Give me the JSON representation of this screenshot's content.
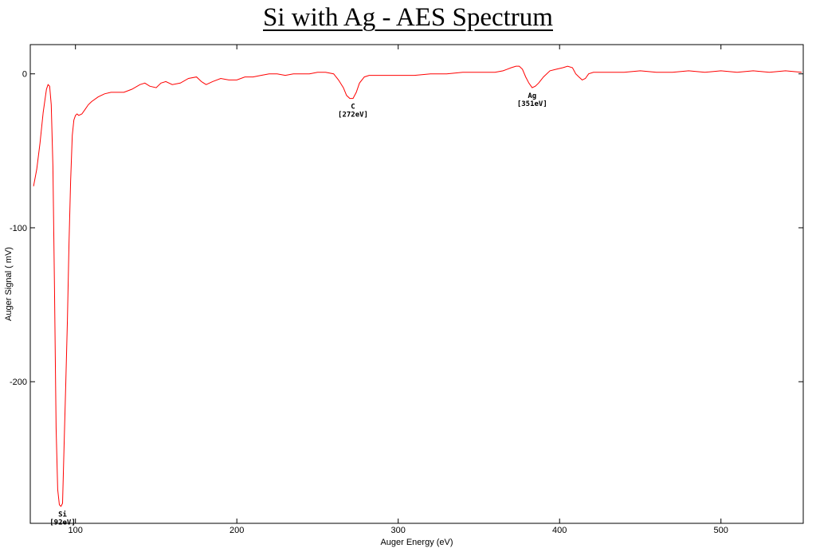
{
  "chart_data": {
    "type": "line",
    "title": "Si with Ag - AES Spectrum",
    "xlabel": "Auger Energy (eV)",
    "ylabel": "Auger Signal ( mV)",
    "xlim": [
      72,
      551
    ],
    "ylim": [
      -292,
      19
    ],
    "xticks": [
      100,
      200,
      300,
      400,
      500
    ],
    "yticks": [
      0,
      -100,
      -200
    ],
    "grid": false,
    "line_color": "#ff0000",
    "series": [
      {
        "x": [
          74,
          76,
          78,
          80,
          82,
          83,
          84,
          85,
          86,
          87,
          88,
          89,
          90,
          91,
          92,
          93,
          94,
          95,
          96,
          97,
          98,
          99,
          100,
          101,
          102,
          104,
          106,
          108,
          110,
          114,
          118,
          122,
          126,
          130,
          135,
          140,
          143,
          146,
          150,
          153,
          156,
          160,
          165,
          170,
          175,
          178,
          181,
          185,
          190,
          195,
          200,
          205,
          210,
          215,
          220,
          225,
          230,
          235,
          240,
          245,
          250,
          255,
          260,
          263,
          266,
          268,
          270,
          272,
          274,
          276,
          279,
          282,
          286,
          290,
          300,
          310,
          320,
          330,
          340,
          350,
          360,
          365,
          370,
          373,
          375,
          377,
          379,
          381,
          383,
          385,
          387,
          390,
          394,
          398,
          402,
          405,
          408,
          410,
          412,
          414,
          416,
          418,
          421,
          425,
          430,
          440,
          450,
          460,
          470,
          480,
          490,
          500,
          510,
          520,
          530,
          540,
          550
        ],
        "values": [
          -73,
          -62,
          -45,
          -25,
          -10,
          -7,
          -8,
          -20,
          -60,
          -140,
          -230,
          -270,
          -280,
          -281,
          -279,
          -240,
          -200,
          -160,
          -110,
          -70,
          -40,
          -30,
          -27,
          -26,
          -27,
          -26,
          -23,
          -20,
          -18,
          -15,
          -13,
          -12,
          -12,
          -12,
          -10,
          -7,
          -6,
          -8,
          -9,
          -6,
          -5,
          -7,
          -6,
          -3,
          -2,
          -5,
          -7,
          -5,
          -3,
          -4,
          -4,
          -2,
          -2,
          -1,
          0,
          0,
          -1,
          0,
          0,
          0,
          1,
          1,
          0,
          -4,
          -9,
          -14,
          -16,
          -16,
          -12,
          -6,
          -2,
          -1,
          -1,
          -1,
          -1,
          -1,
          0,
          0,
          1,
          1,
          1,
          2,
          4,
          5,
          5,
          3,
          -2,
          -6,
          -9,
          -8,
          -6,
          -2,
          2,
          3,
          4,
          5,
          4,
          0,
          -2,
          -4,
          -3,
          0,
          1,
          1,
          1,
          1,
          2,
          1,
          1,
          2,
          1,
          2,
          1,
          2,
          1,
          2,
          1
        ]
      }
    ],
    "annotations": [
      {
        "label": "Si",
        "energy": "[92eV]",
        "x": 92,
        "y": -281
      },
      {
        "label": "C",
        "energy": "[272eV]",
        "x": 272,
        "y": -16
      },
      {
        "label": "Ag",
        "energy": "[351eV]",
        "x": 383,
        "y": -9
      }
    ]
  }
}
